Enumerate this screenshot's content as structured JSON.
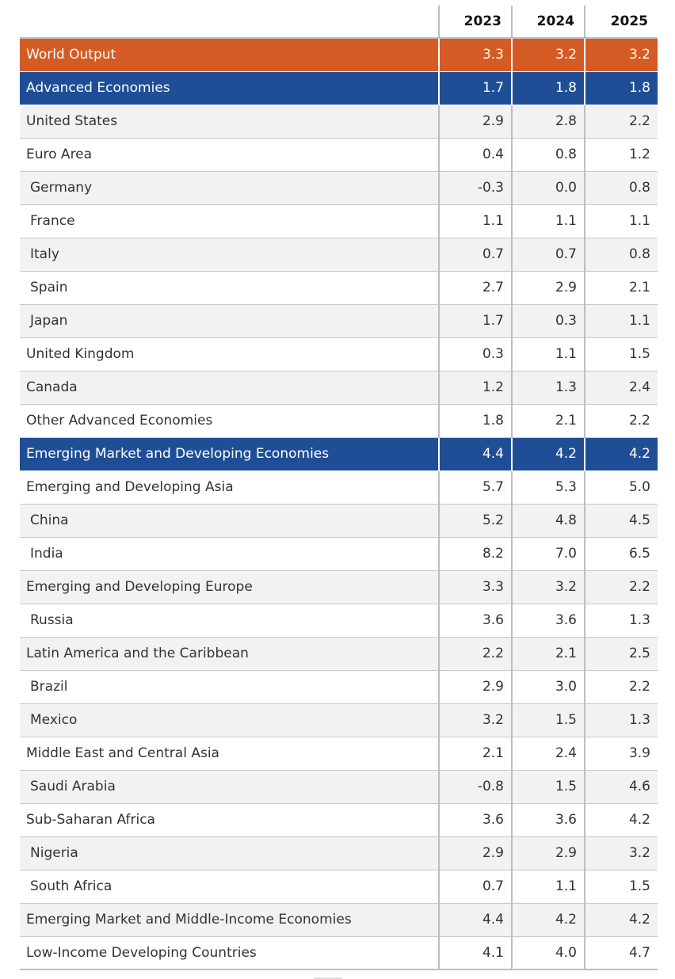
{
  "table": {
    "headers": [
      "",
      "2023",
      "2024",
      "2025"
    ],
    "rows": [
      {
        "name": "World Output",
        "values": [
          "3.3",
          "3.2",
          "3.2"
        ],
        "style": "orange",
        "indent": false
      },
      {
        "name": "Advanced Economies",
        "values": [
          "1.7",
          "1.8",
          "1.8"
        ],
        "style": "blue",
        "indent": false
      },
      {
        "name": "United States",
        "values": [
          "2.9",
          "2.8",
          "2.2"
        ],
        "style": "shade",
        "indent": false
      },
      {
        "name": "Euro Area",
        "values": [
          "0.4",
          "0.8",
          "1.2"
        ],
        "style": "plain",
        "indent": false
      },
      {
        "name": "Germany",
        "values": [
          "-0.3",
          "0.0",
          "0.8"
        ],
        "style": "shade",
        "indent": true
      },
      {
        "name": "France",
        "values": [
          "1.1",
          "1.1",
          "1.1"
        ],
        "style": "plain",
        "indent": true
      },
      {
        "name": "Italy",
        "values": [
          "0.7",
          "0.7",
          "0.8"
        ],
        "style": "shade",
        "indent": true
      },
      {
        "name": "Spain",
        "values": [
          "2.7",
          "2.9",
          "2.1"
        ],
        "style": "plain",
        "indent": true
      },
      {
        "name": "Japan",
        "values": [
          "1.7",
          "0.3",
          "1.1"
        ],
        "style": "shade",
        "indent": true
      },
      {
        "name": "United Kingdom",
        "values": [
          "0.3",
          "1.1",
          "1.5"
        ],
        "style": "plain",
        "indent": false
      },
      {
        "name": "Canada",
        "values": [
          "1.2",
          "1.3",
          "2.4"
        ],
        "style": "shade",
        "indent": false
      },
      {
        "name": "Other Advanced Economies",
        "values": [
          "1.8",
          "2.1",
          "2.2"
        ],
        "style": "plain",
        "indent": false
      },
      {
        "name": "Emerging Market and Developing Economies",
        "values": [
          "4.4",
          "4.2",
          "4.2"
        ],
        "style": "blue",
        "indent": false
      },
      {
        "name": "Emerging and Developing Asia",
        "values": [
          "5.7",
          "5.3",
          "5.0"
        ],
        "style": "plain",
        "indent": false
      },
      {
        "name": "China",
        "values": [
          "5.2",
          "4.8",
          "4.5"
        ],
        "style": "shade",
        "indent": true
      },
      {
        "name": "India",
        "values": [
          "8.2",
          "7.0",
          "6.5"
        ],
        "style": "plain",
        "indent": true
      },
      {
        "name": "Emerging and Developing Europe",
        "values": [
          "3.3",
          "3.2",
          "2.2"
        ],
        "style": "shade",
        "indent": false
      },
      {
        "name": "Russia",
        "values": [
          "3.6",
          "3.6",
          "1.3"
        ],
        "style": "plain",
        "indent": true
      },
      {
        "name": "Latin America and the Caribbean",
        "values": [
          "2.2",
          "2.1",
          "2.5"
        ],
        "style": "shade",
        "indent": false
      },
      {
        "name": "Brazil",
        "values": [
          "2.9",
          "3.0",
          "2.2"
        ],
        "style": "plain",
        "indent": true
      },
      {
        "name": "Mexico",
        "values": [
          "3.2",
          "1.5",
          "1.3"
        ],
        "style": "shade",
        "indent": true
      },
      {
        "name": "Middle East and Central Asia",
        "values": [
          "2.1",
          "2.4",
          "3.9"
        ],
        "style": "plain",
        "indent": false
      },
      {
        "name": "Saudi Arabia",
        "values": [
          "-0.8",
          "1.5",
          "4.6"
        ],
        "style": "shade",
        "indent": true
      },
      {
        "name": "Sub-Saharan Africa",
        "values": [
          "3.6",
          "3.6",
          "4.2"
        ],
        "style": "plain",
        "indent": false
      },
      {
        "name": "Nigeria",
        "values": [
          "2.9",
          "2.9",
          "3.2"
        ],
        "style": "shade",
        "indent": true
      },
      {
        "name": "South Africa",
        "values": [
          "0.7",
          "1.1",
          "1.5"
        ],
        "style": "plain",
        "indent": true
      },
      {
        "name": "Emerging Market and Middle-Income Economies",
        "values": [
          "4.4",
          "4.2",
          "4.2"
        ],
        "style": "shade",
        "indent": false
      },
      {
        "name": "Low-Income Developing Countries",
        "values": [
          "4.1",
          "4.0",
          "4.7"
        ],
        "style": "plain",
        "indent": false
      }
    ]
  },
  "colors": {
    "highlight_orange": "#d55b25",
    "highlight_blue": "#1f4e96",
    "shade_row": "#f2f2f2"
  }
}
